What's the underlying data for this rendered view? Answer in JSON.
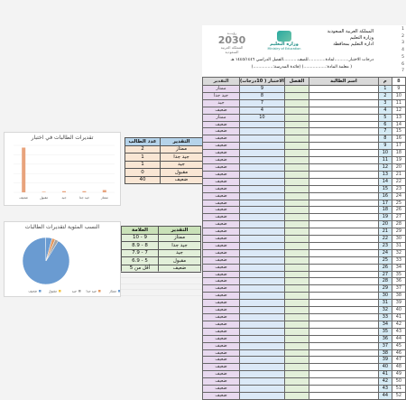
{
  "bar_chart": {
    "title": "تقديرات الطالبات في اختبار",
    "axis_labels": [
      "ممتاز",
      "جيد جدا",
      "جيد",
      "مقبول",
      "ضعيف"
    ]
  },
  "chart_data": [
    {
      "type": "bar",
      "title": "تقديرات الطالبات في اختبار",
      "categories": [
        "ممتاز",
        "جيد جدا",
        "جيد",
        "مقبول",
        "ضعيف"
      ],
      "values": [
        2,
        1,
        1,
        0,
        40
      ]
    },
    {
      "type": "pie",
      "title": "النسب المئوية لتقديرات الطالبات",
      "categories": [
        "ممتاز",
        "جيد جدا",
        "جيد",
        "مقبول",
        "ضعيف"
      ],
      "values": [
        2,
        1,
        1,
        0,
        40
      ],
      "legend_position": "bottom"
    }
  ],
  "pie_chart": {
    "title": "النسب المئوية لتقديرات الطالبات",
    "legend": [
      "ممتاز",
      "جيد جدا",
      "جيد",
      "مقبول",
      "ضعيف"
    ]
  },
  "count_table": {
    "headers": [
      "عدد الطالب",
      "التقدير"
    ],
    "rows": [
      [
        "2",
        "ممتاز"
      ],
      [
        "1",
        "جيد جدا"
      ],
      [
        "1",
        "جيد"
      ],
      [
        "0",
        "مقبول"
      ],
      [
        "40",
        "ضعيف"
      ]
    ]
  },
  "grade_table": {
    "headers": [
      "العلامة",
      "التقدير"
    ],
    "rows": [
      [
        "10 - 9",
        "ممتاز"
      ],
      [
        "8.9 - 8",
        "جيد جدا"
      ],
      [
        "7.9 - 7",
        "جيد"
      ],
      [
        "6.9 - 5",
        "مقبول"
      ],
      [
        "أقل من 5",
        "ضعيف"
      ]
    ]
  },
  "header": {
    "logo_vision_top": "رؤيـــة",
    "logo_vision_year": "2030",
    "logo_vision_sub": "المملكة العربية السعودية",
    "logo_moe": "وزارة التعليم",
    "logo_moe_sub": "Ministry of Education",
    "country": "المملكة العربية السعودية",
    "ministry": "وزارة التعليم",
    "admin": "ادارة التعليم بمحافظة",
    "line1": "درجات الاختبار...........لمادة.............للصف...........الفصل الدراسي ١٤٤٥/١٤٤٦ هـ",
    "line2": "( معلمة المادة:.................) (قائدة المدرسة:...............)"
  },
  "main_table": {
    "headers": {
      "estimate": "التقدير",
      "test": "الاختبار ( 10درجات)",
      "class": "الفصل",
      "name": "اسم الطالبة",
      "no": "م"
    },
    "first_rows": [
      {
        "estimate": "ممتاز",
        "test": "9"
      },
      {
        "estimate": "جيد جدا",
        "test": "8"
      },
      {
        "estimate": "جيد",
        "test": "7"
      },
      {
        "estimate": "ضعيف",
        "test": "4"
      },
      {
        "estimate": "ممتاز",
        "test": "10"
      }
    ],
    "default_estimate": "ضعيف",
    "row_count": 44
  },
  "colors": {
    "bar": "#e8a37c",
    "pie_main": "#6a9bd1",
    "header_blue": "#b5d3ea",
    "estimate": "#e8d9ef"
  }
}
